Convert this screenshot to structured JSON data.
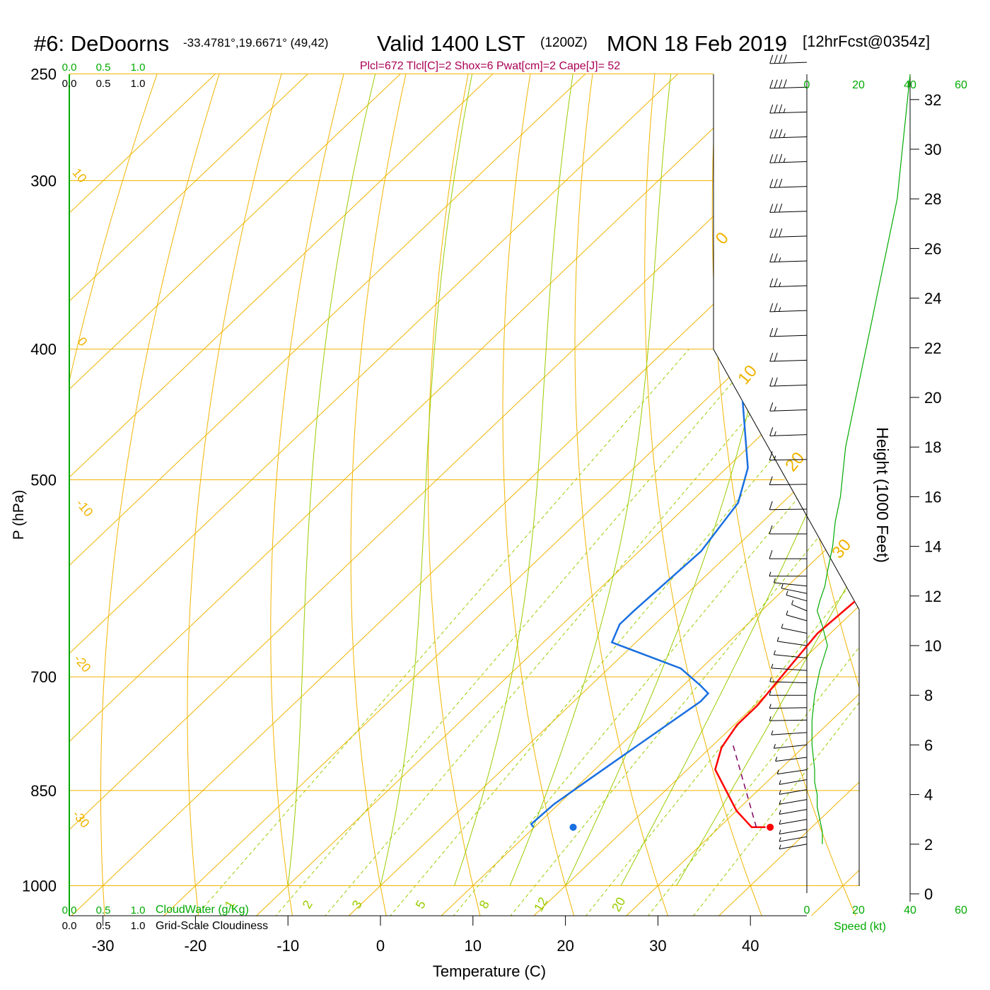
{
  "header": {
    "station": "#6: DeDoorns",
    "coords": "-33.4781°,19.6671° (49,42)",
    "valid": "Valid 1400 LST",
    "zulu": "(1200Z)",
    "date": "MON 18 Feb 2019",
    "fcst": "[12hrFcst@0354z]",
    "indices": "Plcl=672 Tlcl[C]=2 Shox=6 Pwat[cm]=2 Cape[J]= 52"
  },
  "colors": {
    "isotherm": "#f0b400",
    "dry_adiabat": "#f0b400",
    "moist_adiabat": "#99cc00",
    "mixing_ratio": "#99cc00",
    "temperature": "#ff0000",
    "dewpoint": "#1a6fe0",
    "parcel": "#800060",
    "green_label": "#00aa00",
    "indices": "#aa0055"
  },
  "chart_data": {
    "type": "line",
    "xlabel": "Temperature (C)",
    "ylabel": "P (hPa)",
    "right_axis_label": "Height (1000 Feet)",
    "x_ticks": [
      "-30",
      "-20",
      "-10",
      "0",
      "10",
      "20",
      "30",
      "40"
    ],
    "x_tick_values": [
      -30,
      -20,
      -10,
      0,
      10,
      20,
      30,
      40
    ],
    "p_ticks": [
      "250",
      "300",
      "400",
      "500",
      "700",
      "850",
      "1000"
    ],
    "p_tick_values": [
      250,
      300,
      400,
      500,
      700,
      850,
      1000
    ],
    "height_ticks": [
      "0",
      "2",
      "4",
      "6",
      "8",
      "10",
      "12",
      "14",
      "16",
      "18",
      "20",
      "22",
      "24",
      "26",
      "28",
      "30",
      "32"
    ],
    "speed_ticks_top": [
      "0",
      "20",
      "40",
      "60"
    ],
    "speed_ticks_bottom": [
      "0",
      "20",
      "40",
      "60"
    ],
    "speed_label": "Speed (kt)",
    "cloud_ticks": [
      "0.0",
      "0.5",
      "1.0"
    ],
    "cloudwater_label": "CloudWater (g/Kg)",
    "cloudiness_label": "Grid-Scale Cloudiness",
    "isotherm_labels": [
      "10",
      "0",
      "-10",
      "-20",
      "-30"
    ],
    "isotherm_label_right": [
      "0",
      "10",
      "20",
      "30"
    ],
    "mixing_ratio_labels": [
      "1",
      "2",
      "3",
      "5",
      "8",
      "12",
      "20"
    ],
    "series": [
      {
        "name": "Temperature",
        "points": [
          [
            35.0,
            905
          ],
          [
            33.5,
            905
          ],
          [
            30.0,
            880
          ],
          [
            23.0,
            820
          ],
          [
            21.2,
            790
          ],
          [
            20.3,
            760
          ],
          [
            20.3,
            735
          ],
          [
            18.6,
            650
          ],
          [
            19.2,
            600
          ],
          [
            18.3,
            540
          ],
          [
            16.5,
            470
          ],
          [
            14.7,
            420
          ],
          [
            10.4,
            365
          ],
          [
            1.5,
            290
          ],
          [
            -10.8,
            250
          ]
        ]
      },
      {
        "name": "Dewpoint",
        "points": [
          [
            9.9,
            905
          ],
          [
            9.3,
            900
          ],
          [
            9.5,
            870
          ],
          [
            10.6,
            830
          ],
          [
            12.4,
            770
          ],
          [
            13.7,
            730
          ],
          [
            13.6,
            720
          ],
          [
            11.8,
            710
          ],
          [
            7.8,
            690
          ],
          [
            -2.6,
            660
          ],
          [
            -3.8,
            640
          ],
          [
            -3.8,
            625
          ],
          [
            -3.3,
            565
          ],
          [
            -4.8,
            520
          ],
          [
            -7.7,
            490
          ],
          [
            -16.2,
            435
          ],
          [
            -18.8,
            410
          ],
          [
            -16.5,
            380
          ],
          [
            -17.0,
            345
          ],
          [
            -19.8,
            325
          ],
          [
            -21.2,
            315
          ],
          [
            -22.2,
            304
          ],
          [
            -23.5,
            285
          ],
          [
            -27.5,
            250
          ]
        ]
      },
      {
        "name": "Parcel",
        "points": [
          [
            34.0,
            905
          ],
          [
            22.0,
            785
          ]
        ]
      }
    ],
    "surface_points": [
      {
        "name": "surface-temperature",
        "t": 35.5,
        "p": 905
      },
      {
        "name": "surface-dewpoint",
        "t": 14.2,
        "p": 905
      }
    ],
    "wind_profile_kt": {
      "height_kft": [
        2.0,
        2.5,
        3.0,
        3.5,
        4.0,
        4.5,
        5.0,
        6.0,
        7.0,
        8.0,
        9.0,
        10.0,
        10.8,
        11.4,
        11.8,
        12.1,
        12.4,
        13.0,
        14.0,
        15.0,
        16.0,
        17.0,
        18.0,
        19.0,
        20.0,
        21.0,
        22.0,
        23.0,
        24.0,
        25.0,
        26.0,
        27.0,
        28.0,
        29.0,
        30.0,
        31.0,
        32.0,
        33.0
      ],
      "speed": [
        6,
        6,
        5,
        4,
        4,
        3,
        3,
        2,
        2,
        3,
        5,
        8,
        6,
        4,
        5,
        6,
        7,
        8,
        10,
        11,
        13,
        14,
        15,
        17,
        19,
        21,
        23,
        25,
        27,
        29,
        31,
        33,
        35,
        36,
        37,
        38,
        39,
        40
      ],
      "barbs": [
        {
          "h": 33.5,
          "dir": 260,
          "kt": 40
        },
        {
          "h": 32.5,
          "dir": 260,
          "kt": 40
        },
        {
          "h": 31.5,
          "dir": 260,
          "kt": 35
        },
        {
          "h": 30.5,
          "dir": 260,
          "kt": 35
        },
        {
          "h": 29.5,
          "dir": 260,
          "kt": 35
        },
        {
          "h": 28.5,
          "dir": 260,
          "kt": 30
        },
        {
          "h": 27.5,
          "dir": 260,
          "kt": 30
        },
        {
          "h": 26.5,
          "dir": 260,
          "kt": 30
        },
        {
          "h": 25.5,
          "dir": 260,
          "kt": 25
        },
        {
          "h": 24.5,
          "dir": 260,
          "kt": 25
        },
        {
          "h": 23.5,
          "dir": 260,
          "kt": 25
        },
        {
          "h": 22.5,
          "dir": 260,
          "kt": 20
        },
        {
          "h": 21.5,
          "dir": 260,
          "kt": 20
        },
        {
          "h": 20.5,
          "dir": 260,
          "kt": 20
        },
        {
          "h": 19.5,
          "dir": 260,
          "kt": 15
        },
        {
          "h": 18.5,
          "dir": 260,
          "kt": 15
        },
        {
          "h": 17.5,
          "dir": 265,
          "kt": 15
        },
        {
          "h": 16.5,
          "dir": 265,
          "kt": 10
        },
        {
          "h": 15.5,
          "dir": 265,
          "kt": 10
        },
        {
          "h": 14.5,
          "dir": 270,
          "kt": 10
        },
        {
          "h": 13.5,
          "dir": 270,
          "kt": 10
        },
        {
          "h": 12.8,
          "dir": 270,
          "kt": 5
        },
        {
          "h": 12.4,
          "dir": 300,
          "kt": 5
        },
        {
          "h": 12.1,
          "dir": 320,
          "kt": 5
        },
        {
          "h": 11.8,
          "dir": 330,
          "kt": 5
        },
        {
          "h": 11.4,
          "dir": 340,
          "kt": 5
        },
        {
          "h": 11.0,
          "dir": 330,
          "kt": 5
        },
        {
          "h": 10.5,
          "dir": 320,
          "kt": 5
        },
        {
          "h": 10.0,
          "dir": 310,
          "kt": 5
        },
        {
          "h": 9.5,
          "dir": 300,
          "kt": 5
        },
        {
          "h": 9.0,
          "dir": 290,
          "kt": 5
        },
        {
          "h": 8.5,
          "dir": 280,
          "kt": 5
        },
        {
          "h": 8.0,
          "dir": 270,
          "kt": 5
        },
        {
          "h": 7.5,
          "dir": 265,
          "kt": 5
        },
        {
          "h": 7.0,
          "dir": 265,
          "kt": 5
        },
        {
          "h": 6.5,
          "dir": 250,
          "kt": 5
        },
        {
          "h": 6.0,
          "dir": 240,
          "kt": 5
        },
        {
          "h": 5.5,
          "dir": 235,
          "kt": 5
        },
        {
          "h": 5.0,
          "dir": 230,
          "kt": 5
        },
        {
          "h": 4.6,
          "dir": 225,
          "kt": 5
        },
        {
          "h": 4.2,
          "dir": 225,
          "kt": 5
        },
        {
          "h": 3.8,
          "dir": 225,
          "kt": 5
        },
        {
          "h": 3.4,
          "dir": 225,
          "kt": 5
        },
        {
          "h": 3.0,
          "dir": 225,
          "kt": 5
        },
        {
          "h": 2.6,
          "dir": 225,
          "kt": 5
        },
        {
          "h": 2.3,
          "dir": 225,
          "kt": 5
        },
        {
          "h": 2.0,
          "dir": 225,
          "kt": 5
        }
      ]
    }
  }
}
